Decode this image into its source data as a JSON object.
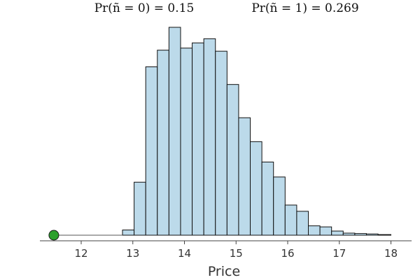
{
  "chart_data": {
    "type": "bar",
    "title": "",
    "xlabel": "Price",
    "ylabel": "",
    "xlim": [
      11.2,
      18.4
    ],
    "ylim": [
      0,
      1
    ],
    "xticks": [
      "12",
      "13",
      "14",
      "15",
      "16",
      "17",
      "18"
    ],
    "annotations": [
      "Pr(ñ = 0) = 0.15",
      "Pr(ñ = 1) = 0.269"
    ],
    "bins": {
      "edges": [
        12.8,
        13.025,
        13.25,
        13.475,
        13.7,
        13.925,
        14.15,
        14.375,
        14.6,
        14.825,
        15.05,
        15.275,
        15.5,
        15.725,
        15.95,
        16.175,
        16.4,
        16.625,
        16.85,
        17.075,
        17.3,
        17.525,
        17.75,
        18.0
      ],
      "values": [
        0.025,
        0.255,
        0.81,
        0.89,
        1.0,
        0.9,
        0.925,
        0.945,
        0.885,
        0.725,
        0.565,
        0.45,
        0.352,
        0.28,
        0.145,
        0.115,
        0.045,
        0.04,
        0.02,
        0.01,
        0.008,
        0.006,
        0.003
      ]
    },
    "marker": {
      "x": 11.47,
      "y": 0,
      "color": "#2ca02c"
    },
    "colors": {
      "bar_fill": "#bcdaea",
      "bar_edge": "#111111",
      "axis": "#444444",
      "baseline": "#555555"
    }
  }
}
